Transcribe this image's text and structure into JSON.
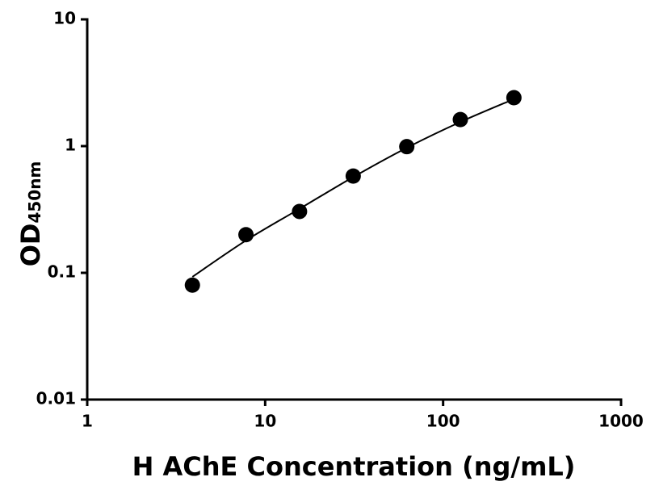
{
  "chart_data": {
    "type": "scatter",
    "x_label": "H AChE Concentration (ng/mL)",
    "y_label": "OD",
    "y_label_sub": "450nm",
    "x": [
      3.9,
      7.8,
      15.6,
      31.25,
      62.5,
      125,
      250
    ],
    "values": [
      0.08,
      0.2,
      0.305,
      0.58,
      0.99,
      1.62,
      2.41
    ],
    "color": "#000000",
    "fit": {
      "x": [
        3.9,
        7.8,
        15.6,
        31.25,
        62.5,
        125,
        250
      ],
      "values": [
        0.093,
        0.18,
        0.32,
        0.57,
        0.97,
        1.55,
        2.35
      ],
      "color": "#000000"
    },
    "log_x": true,
    "log_y": true,
    "xlim": [
      1,
      1000
    ],
    "xticks": [
      1,
      10,
      100,
      1000
    ],
    "ylim": [
      0.01,
      10
    ],
    "yticks": [
      0.01,
      0.1,
      1,
      10
    ]
  }
}
